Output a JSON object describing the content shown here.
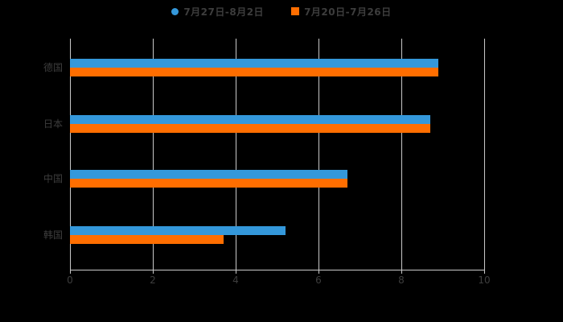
{
  "chart_data": {
    "type": "bar",
    "orientation": "horizontal",
    "title": "",
    "xlabel": "",
    "ylabel": "",
    "categories": [
      "德国",
      "日本",
      "中国",
      "韩国"
    ],
    "series": [
      {
        "name": "7月27日-8月2日",
        "marker": "circle",
        "color": "#3498db",
        "values": [
          8.9,
          8.7,
          6.7,
          5.2
        ]
      },
      {
        "name": "7月20日-7月26日",
        "marker": "square",
        "color": "#ff6e00",
        "values": [
          8.9,
          8.7,
          6.7,
          3.7
        ]
      }
    ],
    "xlim": [
      0,
      10
    ],
    "xticks": [
      "0",
      "2",
      "4",
      "6",
      "8",
      "10"
    ],
    "grid": true,
    "legend_position": "top"
  },
  "colors": {
    "background": "#000000",
    "gridline": "#c9c9c9",
    "axis": "#c9c9c9",
    "text": "#3d3d3d",
    "series1": "#3498db",
    "series2": "#ff6e00"
  }
}
